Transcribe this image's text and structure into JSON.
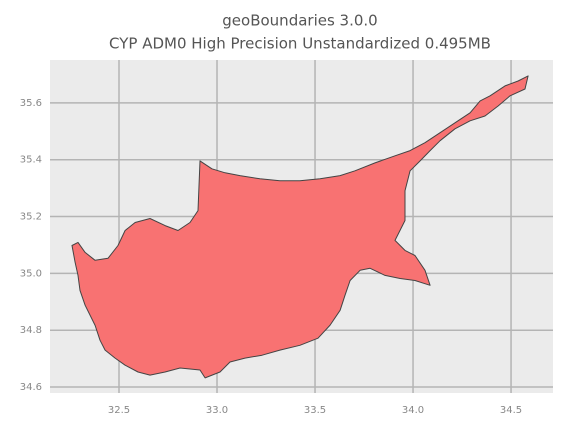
{
  "chart_data": {
    "type": "map",
    "title": "geoBoundaries 3.0.0",
    "subtitle": "CYP ADM0 High Precision Unstandardized 0.495MB",
    "color": "#f87272",
    "grid": true,
    "xlim": [
      32.148,
      34.714
    ],
    "ylim": [
      34.579,
      35.751
    ],
    "xticks": [
      32.5,
      {
        "value": 33,
        "label": "33.0"
      },
      33.5,
      {
        "value": 34,
        "label": "34.0"
      },
      34.5
    ],
    "yticks": [
      34.6,
      34.8,
      {
        "value": 35,
        "label": "35.0"
      },
      35.2,
      35.4,
      35.6
    ],
    "series": [
      {
        "color": "#f87272",
        "x": [
          32.26,
          32.291,
          32.327,
          32.378,
          32.444,
          32.495,
          32.531,
          32.582,
          32.658,
          32.735,
          32.801,
          32.862,
          32.903,
          32.913,
          32.974,
          33.041,
          33.117,
          33.219,
          33.321,
          33.423,
          33.526,
          33.628,
          33.704,
          33.806,
          33.908,
          33.985,
          34.061,
          34.138,
          34.214,
          34.291,
          34.342,
          34.393,
          34.469,
          34.536,
          34.587,
          34.571,
          34.495,
          34.434,
          34.367,
          34.291,
          34.214,
          34.138,
          34.087,
          34.036,
          33.985,
          33.959,
          33.959,
          33.908,
          33.959,
          34.01,
          34.061,
          34.087,
          34.01,
          33.934,
          33.857,
          33.781,
          33.73,
          33.679,
          33.653,
          33.628,
          33.577,
          33.515,
          33.423,
          33.321,
          33.23,
          33.143,
          33.066,
          33.015,
          32.939,
          32.913,
          32.811,
          32.735,
          32.658,
          32.597,
          32.531,
          32.48,
          32.429,
          32.403,
          32.378,
          32.327,
          32.301,
          32.291,
          32.276
        ],
        "values": [
          35.098,
          35.109,
          35.074,
          35.046,
          35.053,
          35.098,
          35.151,
          35.179,
          35.193,
          35.168,
          35.151,
          35.179,
          35.221,
          35.396,
          35.368,
          35.354,
          35.344,
          35.333,
          35.326,
          35.326,
          35.333,
          35.344,
          35.361,
          35.389,
          35.414,
          35.432,
          35.46,
          35.495,
          35.53,
          35.565,
          35.607,
          35.625,
          35.66,
          35.677,
          35.695,
          35.649,
          35.625,
          35.589,
          35.554,
          35.537,
          35.509,
          35.467,
          35.432,
          35.396,
          35.361,
          35.291,
          35.186,
          35.116,
          35.081,
          35.063,
          35.011,
          34.958,
          34.975,
          34.982,
          34.993,
          35.018,
          35.011,
          34.975,
          34.923,
          34.87,
          34.818,
          34.772,
          34.747,
          34.73,
          34.712,
          34.702,
          34.688,
          34.653,
          34.632,
          34.66,
          34.667,
          34.653,
          34.642,
          34.653,
          34.677,
          34.702,
          34.73,
          34.765,
          34.817,
          34.888,
          34.94,
          34.993,
          35.039
        ]
      }
    ]
  }
}
